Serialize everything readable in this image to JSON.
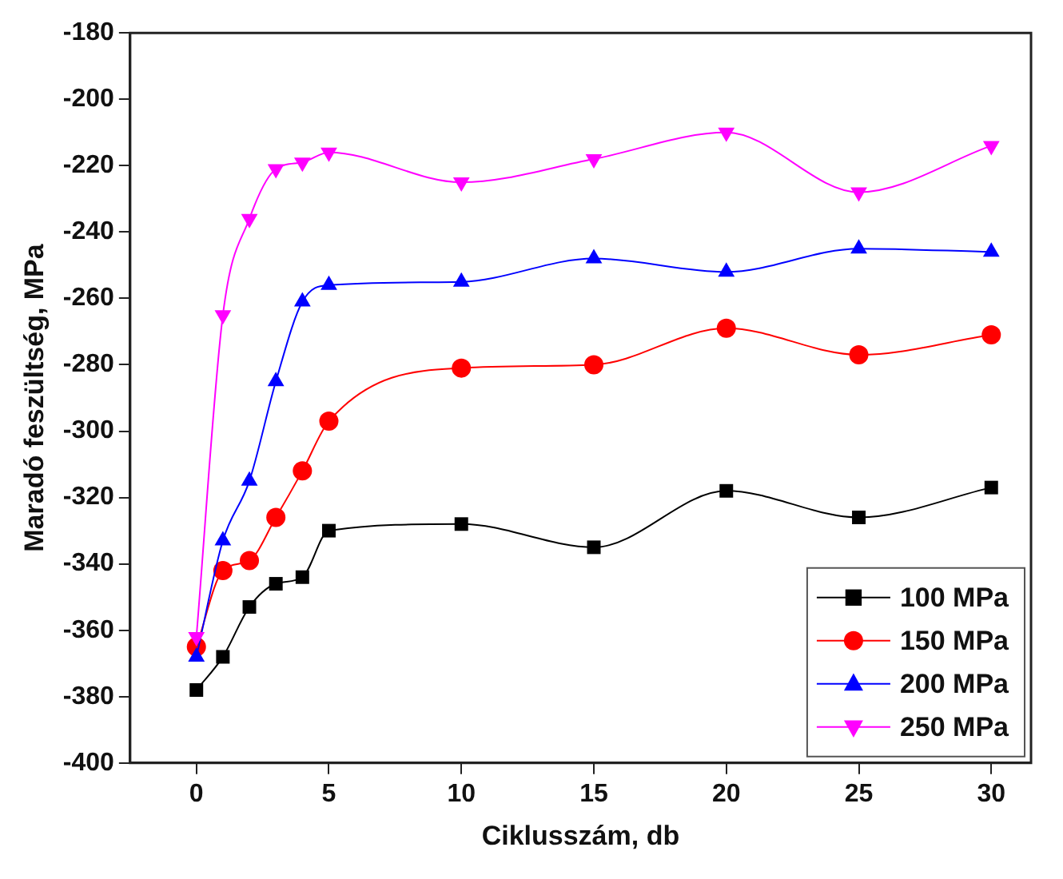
{
  "chart_data": {
    "type": "line",
    "xlabel": "Ciklusszám, db",
    "ylabel": "Maradó feszültség, MPa",
    "x": [
      0,
      1,
      2,
      3,
      4,
      5,
      10,
      15,
      20,
      25,
      30
    ],
    "series": [
      {
        "name": "100 MPa",
        "color": "#000000",
        "marker": "square",
        "values": [
          -378,
          -368,
          -353,
          -346,
          -344,
          -330,
          -328,
          -335,
          -318,
          -326,
          -317
        ]
      },
      {
        "name": "150 MPa",
        "color": "#ff0000",
        "marker": "circle",
        "values": [
          -365,
          -342,
          -339,
          -326,
          -312,
          -297,
          -281,
          -280,
          -269,
          -277,
          -271
        ]
      },
      {
        "name": "200 MPa",
        "color": "#0000ff",
        "marker": "triangle",
        "values": [
          -368,
          -333,
          -315,
          -285,
          -261,
          -256,
          -255,
          -248,
          -252,
          -245,
          -246
        ]
      },
      {
        "name": "250 MPa",
        "color": "#ff00ff",
        "marker": "triangle-down",
        "values": [
          -362,
          -265,
          -236,
          -221,
          -219,
          -216,
          -225,
          -218,
          -210,
          -228,
          -214
        ]
      }
    ],
    "xlim": [
      -2.5,
      31.5
    ],
    "xticks": [
      0,
      5,
      10,
      15,
      20,
      25,
      30
    ],
    "ylim": [
      -400,
      -180
    ],
    "yticks": [
      -400,
      -380,
      -360,
      -340,
      -320,
      -300,
      -280,
      -260,
      -240,
      -220,
      -200,
      -180
    ],
    "grid": false,
    "legend": "bottom right",
    "line_style": "solid"
  }
}
